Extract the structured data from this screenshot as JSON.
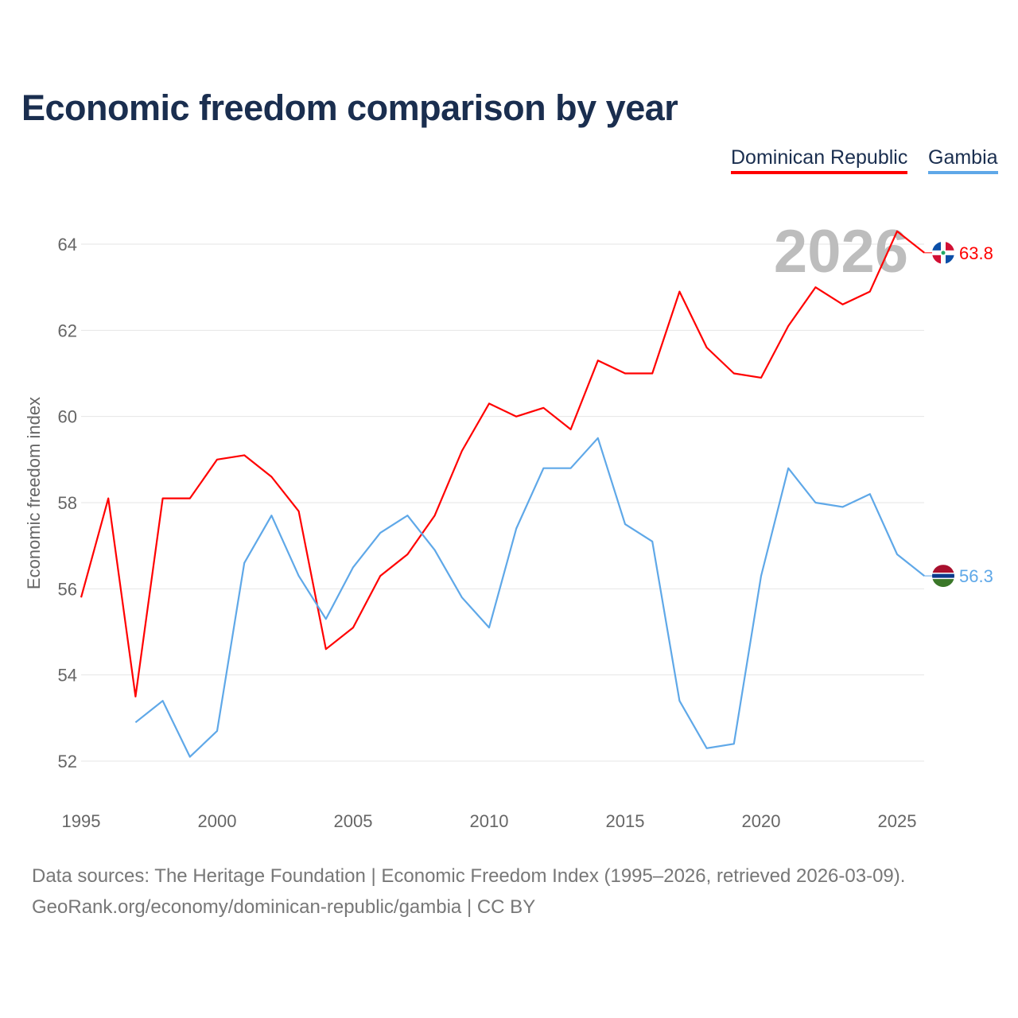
{
  "chart_data": {
    "type": "line",
    "title": "Economic freedom comparison by year",
    "xlabel": "",
    "ylabel": "Economic freedom index",
    "xlim": [
      1995,
      2026
    ],
    "ylim": [
      51.2,
      65
    ],
    "x_ticks": [
      "1995",
      "2000",
      "2005",
      "2010",
      "2015",
      "2020",
      "2025"
    ],
    "y_ticks": [
      "52",
      "54",
      "56",
      "58",
      "60",
      "62",
      "64"
    ],
    "year_watermark": "2026",
    "x": [
      1995,
      1996,
      1997,
      1998,
      1999,
      2000,
      2001,
      2002,
      2003,
      2004,
      2005,
      2006,
      2007,
      2008,
      2009,
      2010,
      2011,
      2012,
      2013,
      2014,
      2015,
      2016,
      2017,
      2018,
      2019,
      2020,
      2021,
      2022,
      2023,
      2024,
      2025,
      2026
    ],
    "series": [
      {
        "name": "Dominican Republic",
        "color": "#ff0000",
        "end_label": "63.8",
        "values": [
          55.8,
          58.1,
          53.5,
          58.1,
          58.1,
          59.0,
          59.1,
          58.6,
          57.8,
          54.6,
          55.1,
          56.3,
          56.8,
          57.7,
          59.2,
          60.3,
          60.0,
          60.2,
          59.7,
          61.3,
          61.0,
          61.0,
          62.9,
          61.6,
          61.0,
          60.9,
          62.1,
          63.0,
          62.6,
          62.9,
          64.3,
          63.8
        ]
      },
      {
        "name": "Gambia",
        "color": "#5fa8e8",
        "end_label": "56.3",
        "values": [
          null,
          null,
          52.9,
          53.4,
          52.1,
          52.7,
          56.6,
          57.7,
          56.3,
          55.3,
          56.5,
          57.3,
          57.7,
          56.9,
          55.8,
          55.1,
          57.4,
          58.8,
          58.8,
          59.5,
          57.5,
          57.1,
          53.4,
          52.3,
          52.4,
          56.3,
          58.8,
          58.0,
          57.9,
          58.2,
          56.8,
          56.3
        ]
      }
    ],
    "legend": "top-right",
    "grid": true
  },
  "footer": {
    "source": "Data sources: The Heritage Foundation | Economic Freedom Index (1995–2026, retrieved 2026-03-09).",
    "credit": "GeoRank.org/economy/dominican-republic/gambia | CC BY"
  }
}
